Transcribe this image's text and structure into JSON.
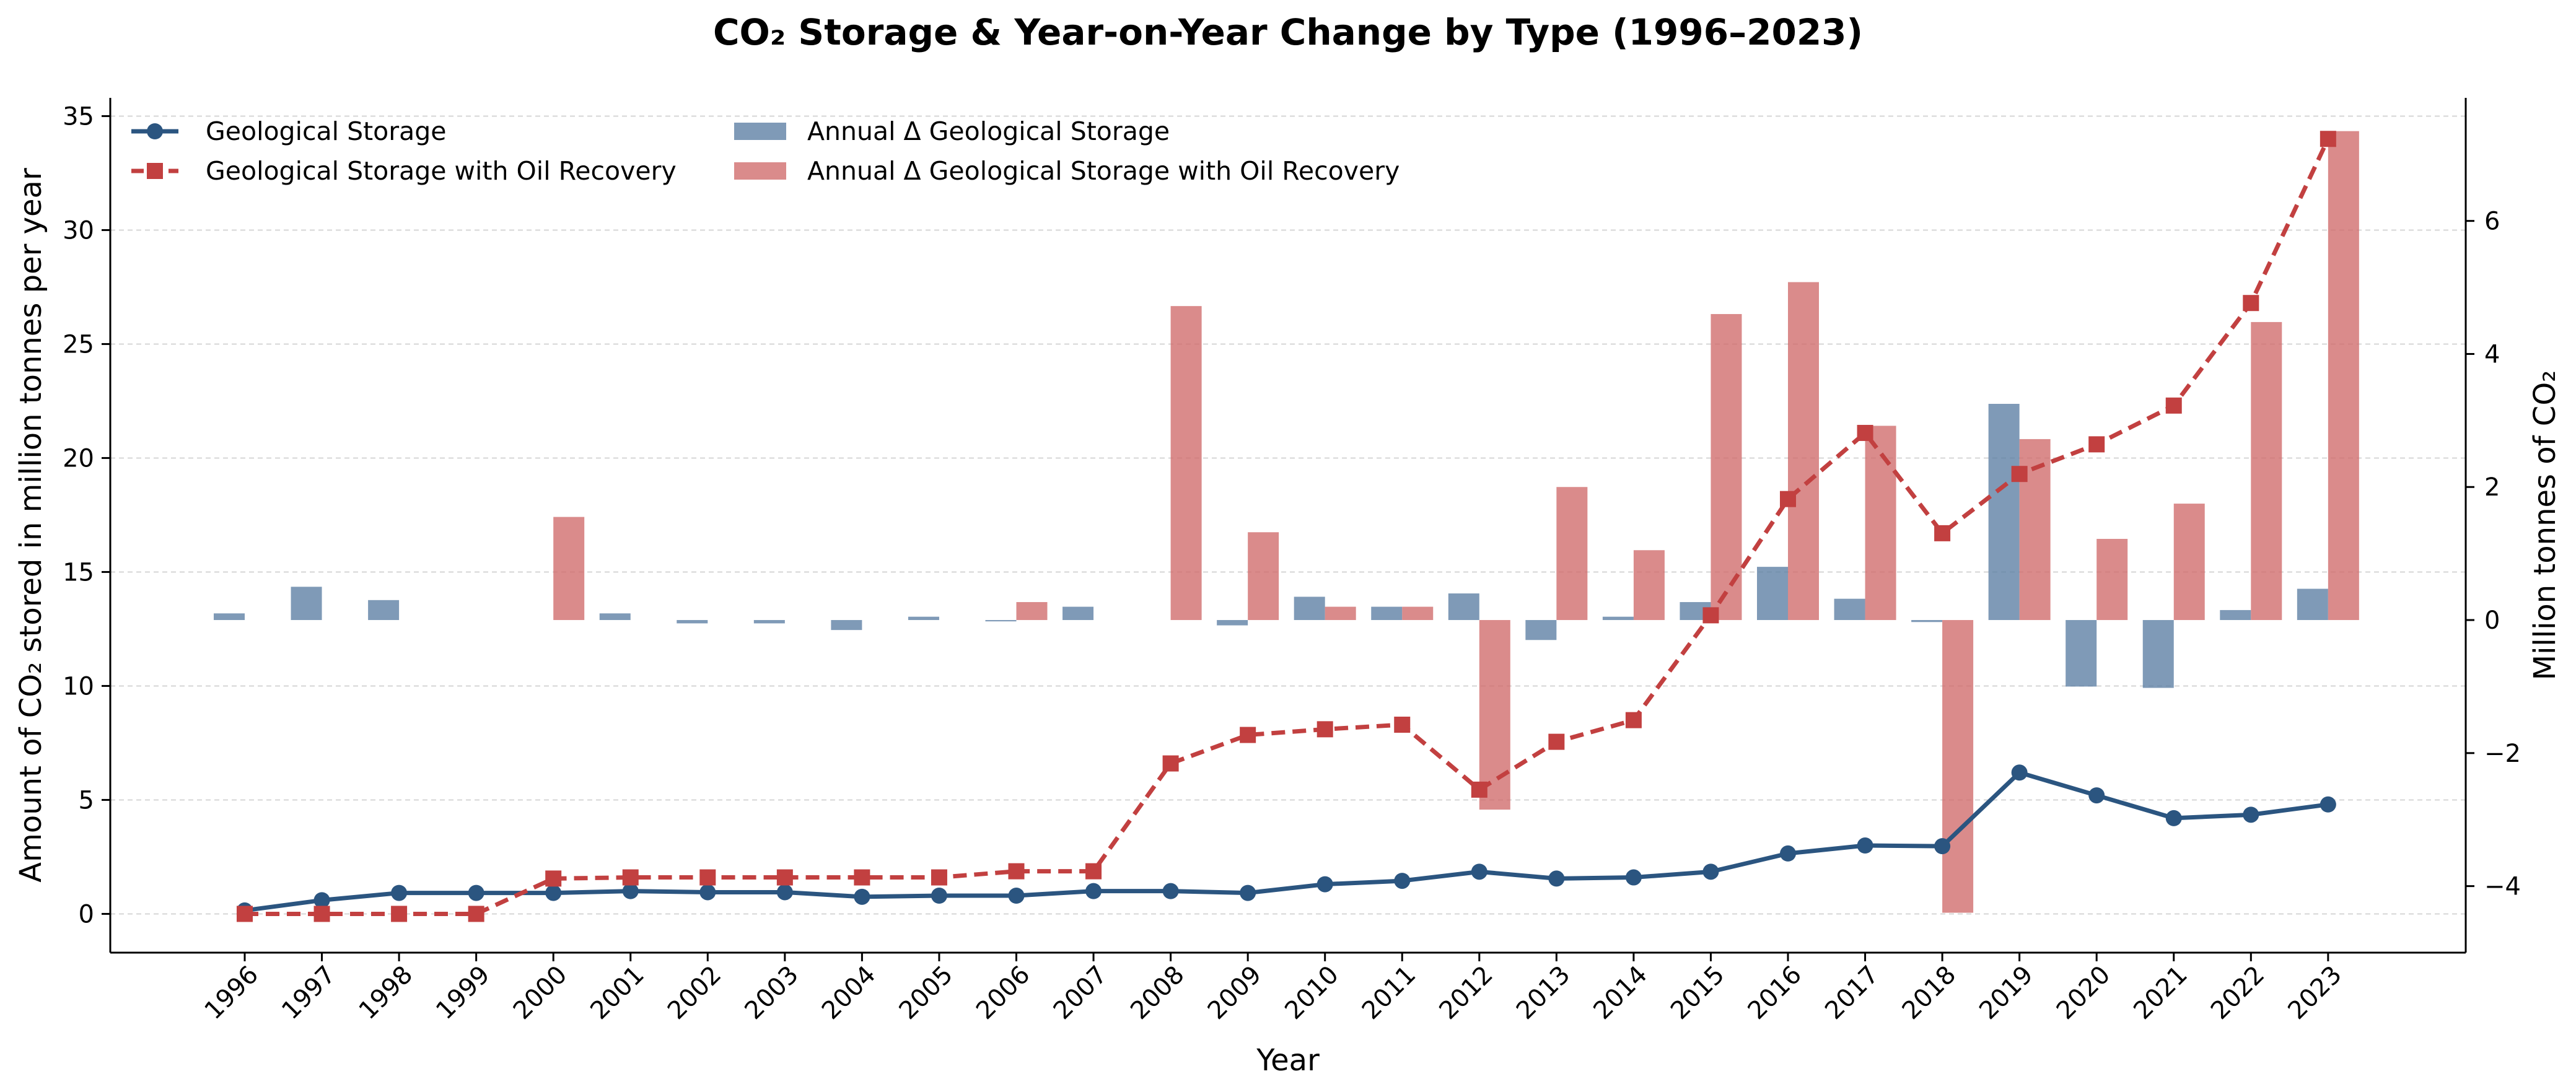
{
  "chart_data": {
    "type": "bar+line",
    "title": "CO₂ Storage & Year-on-Year Change by Type (1996–2023)",
    "xlabel": "Year",
    "ylabel_left": "Amount of CO₂ stored in million tonnes per year",
    "ylabel_right": "Million tonnes of CO₂",
    "ylim_left": [
      -1.7,
      35.8
    ],
    "ylim_right": [
      -5,
      7.85
    ],
    "yticks_left": [
      0,
      5,
      10,
      15,
      20,
      25,
      30,
      35
    ],
    "yticks_right": [
      -4,
      -2,
      0,
      2,
      4,
      6
    ],
    "ytick_labels_right": [
      "−4",
      "−2",
      "0",
      "2",
      "4",
      "6"
    ],
    "grid": true,
    "legend_position": "top-left",
    "categories": [
      "1996",
      "1997",
      "1998",
      "1999",
      "2000",
      "2001",
      "2002",
      "2003",
      "2004",
      "2005",
      "2006",
      "2007",
      "2008",
      "2009",
      "2010",
      "2011",
      "2012",
      "2013",
      "2014",
      "2015",
      "2016",
      "2017",
      "2018",
      "2019",
      "2020",
      "2021",
      "2022",
      "2023"
    ],
    "lines": [
      {
        "name": "Geological Storage",
        "axis": "left",
        "color": "#2b5580",
        "marker": "circle",
        "style": "solid",
        "values": [
          0.15,
          0.6,
          0.92,
          0.92,
          0.92,
          1.0,
          0.95,
          0.95,
          0.75,
          0.8,
          0.8,
          1.0,
          1.0,
          0.92,
          1.3,
          1.45,
          1.85,
          1.55,
          1.6,
          1.85,
          2.65,
          3.0,
          2.97,
          6.2,
          5.2,
          4.2,
          4.35,
          4.8
        ]
      },
      {
        "name": "Geological Storage with Oil Recovery",
        "axis": "left",
        "color": "#c24040",
        "marker": "square",
        "style": "dashed",
        "values": [
          0.0,
          0.0,
          0.0,
          0.0,
          1.55,
          1.6,
          1.6,
          1.6,
          1.6,
          1.6,
          1.87,
          1.87,
          6.6,
          7.85,
          8.1,
          8.3,
          5.45,
          7.55,
          8.5,
          13.1,
          18.2,
          21.1,
          16.7,
          19.3,
          20.6,
          22.3,
          26.8,
          34.0
        ]
      }
    ],
    "bar_series": [
      {
        "name": "Annual Δ Geological Storage",
        "axis": "right",
        "color": "#5b7ea3",
        "values": [
          0.1,
          0.5,
          0.3,
          0.0,
          0.0,
          0.1,
          -0.05,
          -0.05,
          -0.15,
          0.05,
          -0.02,
          0.2,
          0.0,
          -0.08,
          0.35,
          0.2,
          0.4,
          -0.3,
          0.05,
          0.27,
          0.8,
          0.32,
          -0.03,
          3.25,
          -1.0,
          -1.02,
          0.15,
          0.47
        ]
      },
      {
        "name": "Annual Δ Geological Storage with Oil Recovery",
        "axis": "right",
        "color": "#d06a6a",
        "values": [
          0.0,
          0.0,
          0.0,
          0.0,
          1.55,
          0.0,
          0.0,
          0.0,
          0.0,
          0.0,
          0.27,
          0.0,
          4.72,
          1.32,
          0.2,
          0.2,
          -2.85,
          2.0,
          1.05,
          4.6,
          5.08,
          2.92,
          -4.4,
          2.72,
          1.22,
          1.75,
          4.48,
          7.35
        ]
      }
    ]
  }
}
